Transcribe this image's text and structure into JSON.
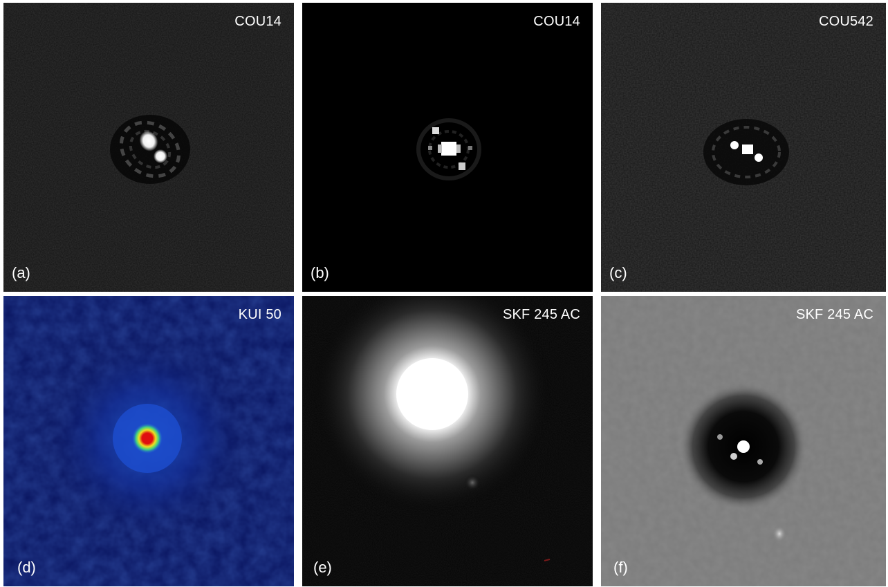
{
  "panels": [
    {
      "id": "a",
      "label": "(a)",
      "name": "COU14"
    },
    {
      "id": "b",
      "label": "(b)",
      "name": "COU14"
    },
    {
      "id": "c",
      "label": "(c)",
      "name": "COU542"
    },
    {
      "id": "d",
      "label": "(d)",
      "name": "KUI 50"
    },
    {
      "id": "e",
      "label": "(e)",
      "name": "SKF 245 AC"
    },
    {
      "id": "f",
      "label": "(f)",
      "name": "SKF 245 AC"
    }
  ]
}
